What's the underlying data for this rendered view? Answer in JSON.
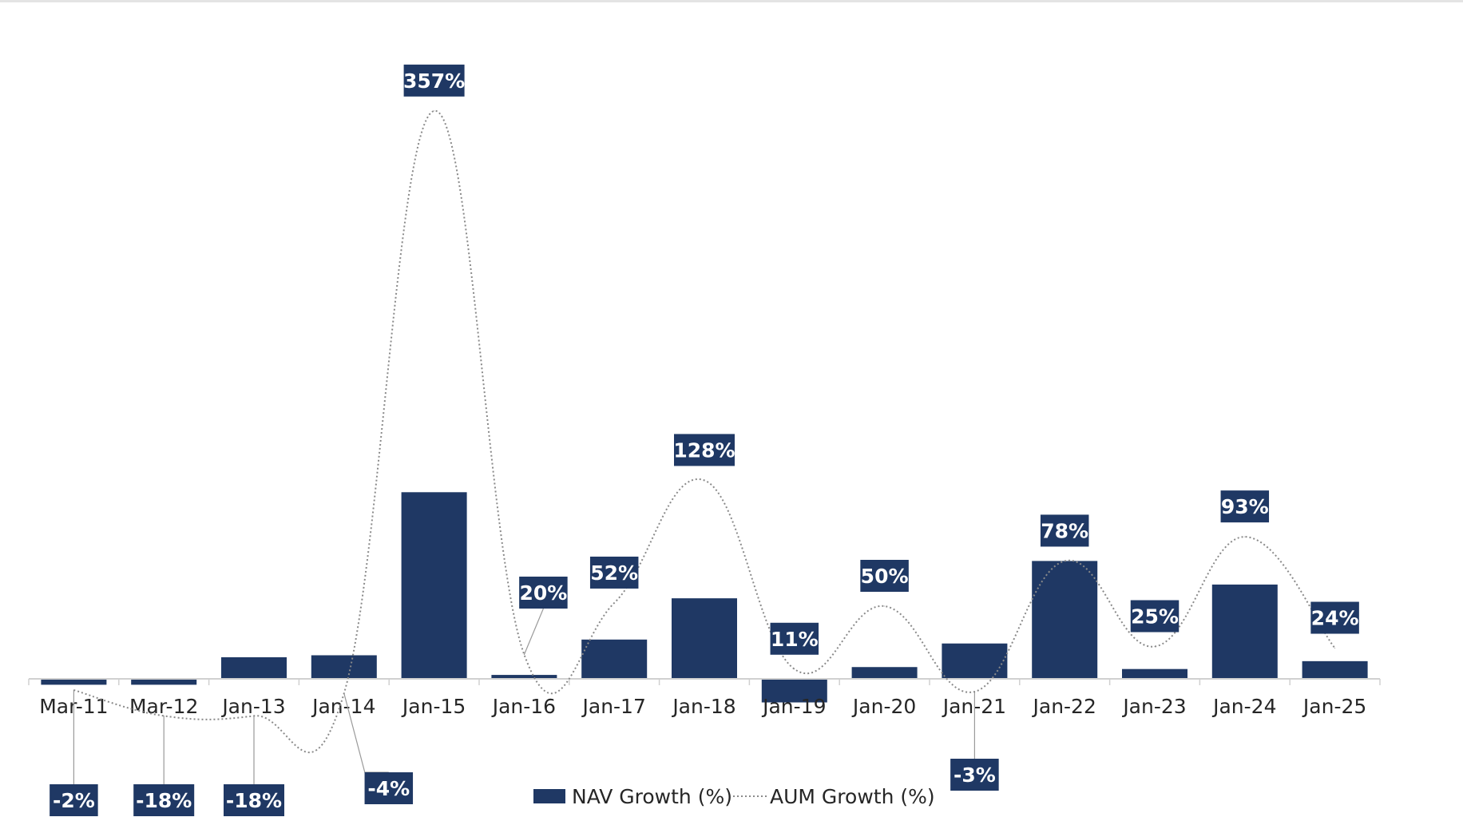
{
  "chart_data": {
    "type": "bar",
    "categories": [
      "Mar-11",
      "Mar-12",
      "Jan-13",
      "Jan-14",
      "Jan-15",
      "Jan-16",
      "Jan-17",
      "Jan-18",
      "Jan-19",
      "Jan-20",
      "Jan-21",
      "Jan-22",
      "Jan-23",
      "Jan-24",
      "Jan-25"
    ],
    "series": [
      {
        "name": "NAV Growth (%)",
        "kind": "bar",
        "color": "#1f3864",
        "values": [
          -3,
          -3,
          11,
          12,
          95,
          2,
          20,
          41,
          -12,
          6,
          18,
          60,
          5,
          48,
          9
        ]
      },
      {
        "name": "AUM Growth (%)",
        "kind": "line",
        "style": "dotted",
        "smooth": true,
        "color": "#8a8a8a",
        "values": [
          -2,
          -18,
          -18,
          -4,
          357,
          20,
          52,
          128,
          11,
          50,
          -3,
          78,
          25,
          93,
          24
        ],
        "labels": [
          "-2%",
          "-18%",
          "-18%",
          "-4%",
          "357%",
          "20%",
          "52%",
          "128%",
          "11%",
          "50%",
          "-3%",
          "78%",
          "25%",
          "93%",
          "24%"
        ]
      }
    ],
    "title": "",
    "xlabel": "",
    "ylabel": "",
    "ylim": [
      -30,
      370
    ],
    "grid": false,
    "legend": "bottom",
    "label_color": "#1f3864"
  }
}
